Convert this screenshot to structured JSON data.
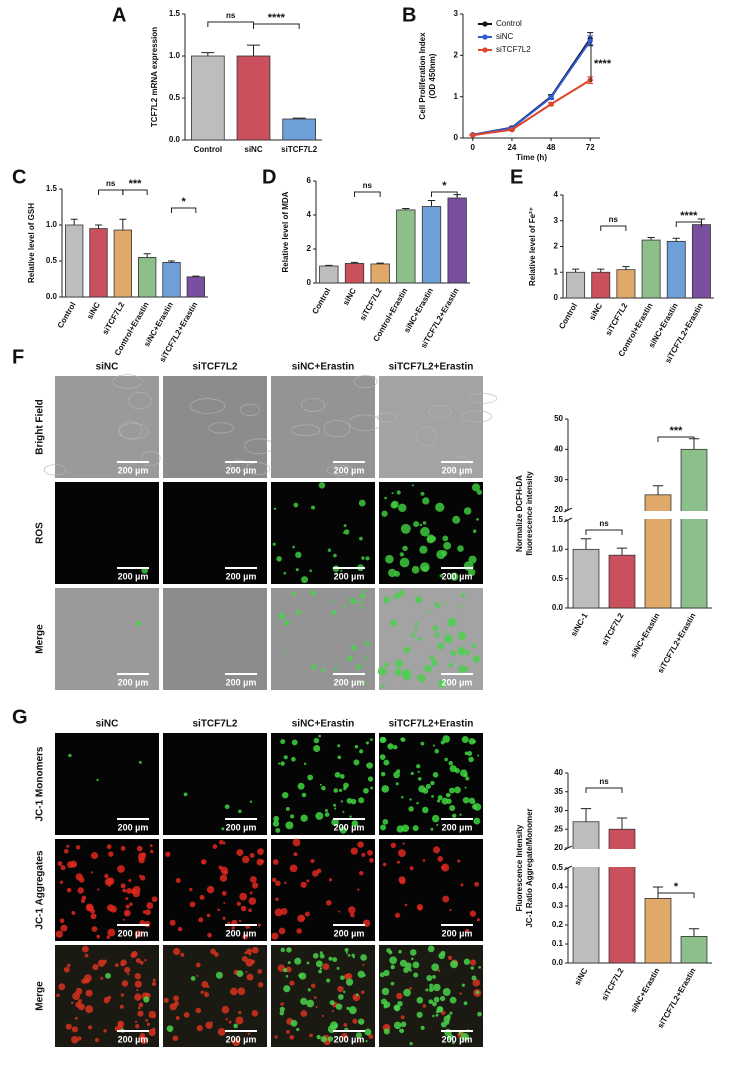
{
  "panel_labels": [
    "A",
    "B",
    "C",
    "D",
    "E",
    "F",
    "G"
  ],
  "chart_data": [
    {
      "type": "bar",
      "ylabel": [
        "TCF7L2 mRNA expression"
      ],
      "categories": [
        "Control",
        "siNC",
        "siTCF7L2"
      ],
      "values": [
        1.0,
        1.0,
        0.25
      ],
      "errors": [
        0.04,
        0.13,
        0.01
      ],
      "colors": [
        "#bdbdbd",
        "#c9505c",
        "#6f9fd8"
      ],
      "ylim": [
        0,
        1.5
      ],
      "yticks": [
        {
          "value": 0,
          "label": "0.0"
        },
        {
          "value": 0.5,
          "label": "0.5"
        },
        {
          "value": 1,
          "label": "1.0"
        },
        {
          "value": 1.5,
          "label": "1.5"
        }
      ],
      "annotations": [
        "ns",
        "****"
      ]
    },
    {
      "type": "line",
      "ylabel": [
        "Cell Proliferation Index",
        "(OD 450nm)"
      ],
      "xlabel": "Time (h)",
      "x": [
        0,
        24,
        48,
        72
      ],
      "series": [
        {
          "name": "Control",
          "color": "#111111",
          "values": [
            0.08,
            0.25,
            1.0,
            2.4
          ],
          "errors": [
            0.02,
            0.03,
            0.05,
            0.15
          ]
        },
        {
          "name": "siNC",
          "color": "#2f5bd3",
          "values": [
            0.08,
            0.24,
            0.98,
            2.35
          ],
          "errors": [
            0.02,
            0.03,
            0.05,
            0.12
          ]
        },
        {
          "name": "siTCF7L2",
          "color": "#e0452c",
          "values": [
            0.07,
            0.2,
            0.82,
            1.4
          ],
          "errors": [
            0.02,
            0.02,
            0.04,
            0.08
          ]
        }
      ],
      "xlim": [
        -6,
        78
      ],
      "xticks": [
        0,
        24,
        48,
        72
      ],
      "ylim": [
        0,
        3
      ],
      "yticks": [
        0,
        1,
        2,
        3
      ],
      "annotations": [
        "****"
      ]
    },
    {
      "type": "bar",
      "ylabel": [
        "Relative level of GSH"
      ],
      "categories": [
        "Control",
        "siNC",
        "siTCF7L2",
        "Control+Erastin",
        "siNC+Erastin",
        "siTCF7L2+Erastin"
      ],
      "values": [
        1.0,
        0.95,
        0.93,
        0.55,
        0.48,
        0.28
      ],
      "errors": [
        0.08,
        0.05,
        0.15,
        0.05,
        0.02,
        0.01
      ],
      "colors": [
        "#bdbdbd",
        "#c9505c",
        "#e0a96a",
        "#8dbf8a",
        "#6f9fd8",
        "#7b4fa0"
      ],
      "ylim": [
        0,
        1.5
      ],
      "yticks": [
        {
          "value": 0,
          "label": "0.0"
        },
        {
          "value": 0.5,
          "label": "0.5"
        },
        {
          "value": 1,
          "label": "1.0"
        },
        {
          "value": 1.5,
          "label": "1.5"
        }
      ],
      "annotations": [
        "ns",
        "***",
        "*"
      ]
    },
    {
      "type": "bar",
      "ylabel": [
        "Relative level of MDA"
      ],
      "categories": [
        "Control",
        "siNC",
        "siTCF7L2",
        "Control+Erastin",
        "siNC+Erastin",
        "siTCF7L2+Erastin"
      ],
      "values": [
        1.0,
        1.15,
        1.12,
        4.3,
        4.5,
        5.0
      ],
      "errors": [
        0.04,
        0.06,
        0.05,
        0.08,
        0.35,
        0.2
      ],
      "colors": [
        "#bdbdbd",
        "#c9505c",
        "#e0a96a",
        "#8dbf8a",
        "#6f9fd8",
        "#7b4fa0"
      ],
      "ylim": [
        0,
        6
      ],
      "yticks": [
        0,
        2,
        4,
        6
      ],
      "annotations": [
        "ns",
        "*"
      ]
    },
    {
      "type": "bar",
      "ylabel": [
        "Relative level of Fe²⁺"
      ],
      "categories": [
        "Control",
        "siNC",
        "siTCF7L2",
        "Control+Erastin",
        "siNC+Erastin",
        "siTCF7L2+Erastin"
      ],
      "values": [
        1.0,
        1.0,
        1.1,
        2.25,
        2.2,
        2.85
      ],
      "errors": [
        0.12,
        0.12,
        0.12,
        0.1,
        0.12,
        0.22
      ],
      "colors": [
        "#bdbdbd",
        "#c9505c",
        "#e0a96a",
        "#8dbf8a",
        "#6f9fd8",
        "#7b4fa0"
      ],
      "ylim": [
        0,
        4
      ],
      "yticks": [
        0,
        1,
        2,
        3,
        4
      ],
      "annotations": [
        "ns",
        "****"
      ]
    },
    {
      "type": "bar",
      "ylabel": [
        "Normalize DCFH-DA",
        "fluorescence intensity"
      ],
      "categories": [
        "siNC-1",
        "siTCF7L2",
        "siNC+Erastin",
        "siTCF7L2+Erastin"
      ],
      "values": [
        1.0,
        0.9,
        25,
        40
      ],
      "errors": [
        0.18,
        0.12,
        3,
        3.5
      ],
      "colors": [
        "#bdbdbd",
        "#c9505c",
        "#e0a96a",
        "#8dbf8a"
      ],
      "ylim": [
        0,
        50
      ],
      "ybreak": [
        1.5,
        20
      ],
      "yticks": [
        {
          "value": 0,
          "label": "0.0"
        },
        {
          "value": 0.5,
          "label": "0.5"
        },
        {
          "value": 1,
          "label": "1.0"
        },
        {
          "value": 1.5,
          "label": "1.5"
        },
        20,
        30,
        40,
        50
      ],
      "annotations": [
        "ns",
        "***"
      ]
    },
    {
      "type": "bar",
      "ylabel": [
        "Fluorescence Intensity",
        "JC-1 Ratio Aggregate/Monomer"
      ],
      "categories": [
        "siNC",
        "siTCF7L2",
        "siNC+Erastin",
        "siTCF7L2+Erastin"
      ],
      "values": [
        27,
        25,
        0.34,
        0.14
      ],
      "errors": [
        3.5,
        3,
        0.06,
        0.04
      ],
      "colors": [
        "#bdbdbd",
        "#c9505c",
        "#e0a96a",
        "#8dbf8a"
      ],
      "ylim": [
        0,
        40
      ],
      "ybreak": [
        0.5,
        20
      ],
      "yticks": [
        {
          "value": 0,
          "label": "0.0"
        },
        0.1,
        0.2,
        0.3,
        0.4,
        0.5,
        20,
        25,
        30,
        35,
        40
      ],
      "annotations": [
        "ns",
        "*"
      ]
    }
  ],
  "image_panels": [
    {
      "columns": [
        "siNC",
        "siTCF7L2",
        "siNC+Erastin",
        "siTCF7L2+Erastin"
      ],
      "rows": [
        "Bright Field",
        "ROS",
        "Merge"
      ],
      "scale_bar": "200 µm"
    },
    {
      "columns": [
        "siNC",
        "siTCF7L2",
        "siNC+Erastin",
        "siTCF7L2+Erastin"
      ],
      "rows": [
        "JC-1 Monomers",
        "JC-1 Aggregates",
        "Merge"
      ],
      "scale_bar": "200 µm"
    }
  ]
}
